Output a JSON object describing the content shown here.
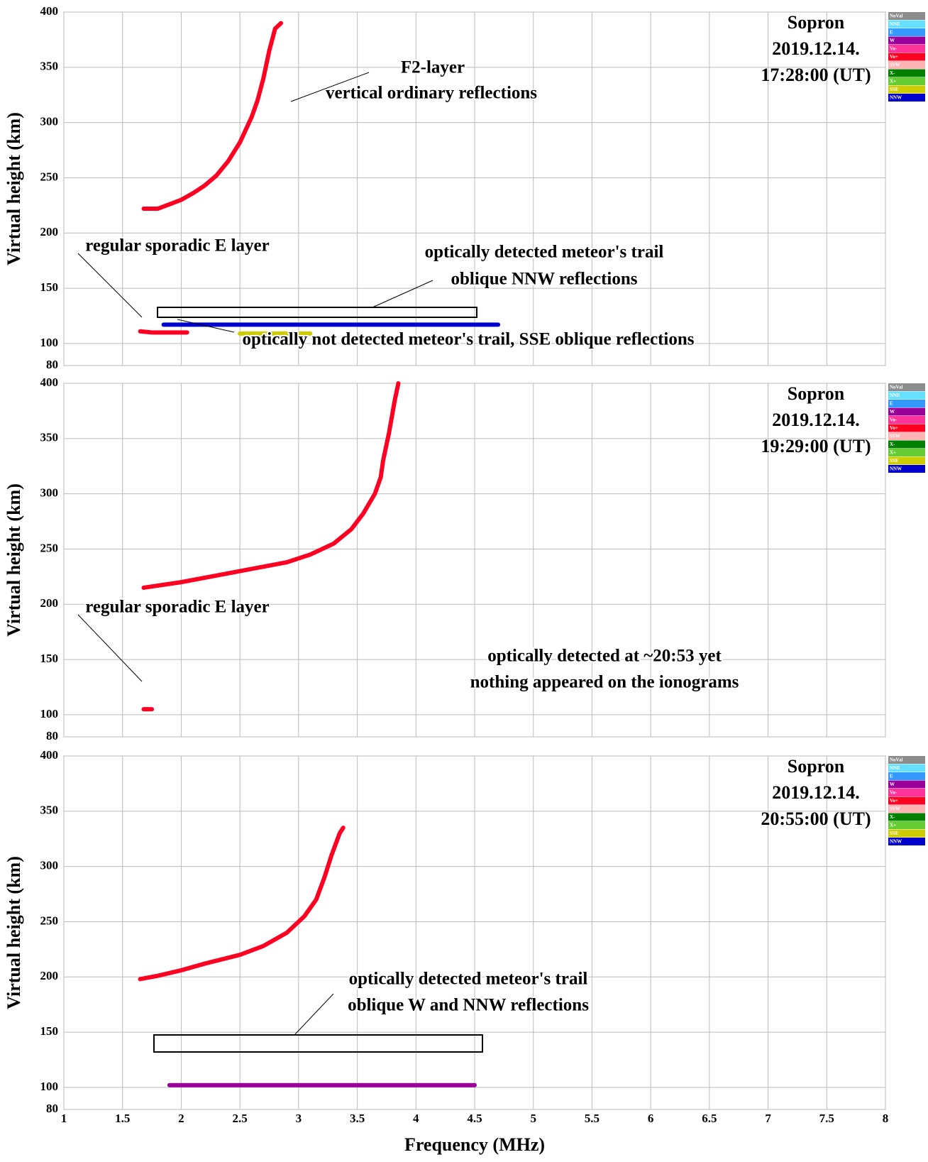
{
  "chart_data": [
    {
      "type": "ionogram",
      "title": [
        "Sopron",
        "2019.12.14.",
        "17:28:00 (UT)"
      ],
      "ylabel": "Virtual height (km)",
      "xlim": [
        1,
        8
      ],
      "ylim": [
        80,
        400
      ],
      "yticks": [
        80,
        100,
        150,
        200,
        250,
        300,
        350,
        400
      ],
      "grid": true,
      "legend": [
        {
          "label": "NoVal",
          "color": "#8c8c8c"
        },
        {
          "label": "NNE",
          "color": "#66e0ff"
        },
        {
          "label": "E",
          "color": "#3399ff"
        },
        {
          "label": "W",
          "color": "#990099"
        },
        {
          "label": "Vo-",
          "color": "#ff3399"
        },
        {
          "label": "Vo+",
          "color": "#ff0022"
        },
        {
          "label": "SSW",
          "color": "#ffb3b3"
        },
        {
          "label": "X-",
          "color": "#008000"
        },
        {
          "label": "X+",
          "color": "#66cc33"
        },
        {
          "label": "SSE",
          "color": "#cccc00"
        },
        {
          "label": "NNW",
          "color": "#0000cc"
        }
      ],
      "series": [
        {
          "color": "#ff0022",
          "x": [
            1.68,
            1.8,
            1.9,
            2.0,
            2.1,
            2.2,
            2.3,
            2.4,
            2.5,
            2.6,
            2.65,
            2.7,
            2.75,
            2.8,
            2.85
          ],
          "values": [
            222,
            222,
            226,
            230,
            236,
            243,
            252,
            265,
            282,
            305,
            320,
            340,
            365,
            385,
            390
          ]
        },
        {
          "color": "#ff0022",
          "x": [
            1.65,
            1.75,
            1.9,
            2.05
          ],
          "values": [
            111,
            110,
            110,
            110
          ]
        },
        {
          "color": "#0000cc",
          "x": [
            1.85,
            2.5,
            3.2,
            3.9,
            4.7
          ],
          "values": [
            117,
            117,
            117,
            117,
            117
          ]
        },
        {
          "color": "#cccc00",
          "x": [
            2.5,
            2.8,
            3.1
          ],
          "values": [
            109,
            109,
            109
          ]
        }
      ],
      "annotations": [
        "F2-layer",
        "vertical ordinary  reflections",
        "regular sporadic E layer",
        "optically detected meteor's trail",
        "oblique NNW reflections",
        "optically not detected meteor's trail, SSE oblique reflections"
      ]
    },
    {
      "type": "ionogram",
      "title": [
        "Sopron",
        "2019.12.14.",
        "19:29:00 (UT)"
      ],
      "ylabel": "Virtual height (km)",
      "xlim": [
        1,
        8
      ],
      "ylim": [
        80,
        400
      ],
      "yticks": [
        80,
        100,
        150,
        200,
        250,
        300,
        350,
        400
      ],
      "grid": true,
      "legend": [
        {
          "label": "NoVal",
          "color": "#8c8c8c"
        },
        {
          "label": "NNE",
          "color": "#66e0ff"
        },
        {
          "label": "E",
          "color": "#3399ff"
        },
        {
          "label": "W",
          "color": "#990099"
        },
        {
          "label": "Vo-",
          "color": "#ff3399"
        },
        {
          "label": "Vo+",
          "color": "#ff0022"
        },
        {
          "label": "SSW",
          "color": "#ffb3b3"
        },
        {
          "label": "X-",
          "color": "#008000"
        },
        {
          "label": "X+",
          "color": "#66cc33"
        },
        {
          "label": "SSE",
          "color": "#cccc00"
        },
        {
          "label": "NNW",
          "color": "#0000cc"
        }
      ],
      "series": [
        {
          "color": "#ff0022",
          "x": [
            1.68,
            2.0,
            2.3,
            2.6,
            2.9,
            3.1,
            3.3,
            3.45,
            3.55,
            3.65,
            3.7,
            3.72,
            3.77,
            3.82,
            3.85
          ],
          "values": [
            215,
            220,
            226,
            232,
            238,
            245,
            255,
            268,
            282,
            300,
            315,
            330,
            355,
            385,
            400
          ]
        },
        {
          "color": "#ff0022",
          "x": [
            1.68,
            1.75
          ],
          "values": [
            105,
            105
          ]
        }
      ],
      "annotations": [
        "regular sporadic E layer",
        "optically detected at ~20:53 yet",
        "nothing appeared on the ionograms"
      ]
    },
    {
      "type": "ionogram",
      "title": [
        "Sopron",
        "2019.12.14.",
        "20:55:00 (UT)"
      ],
      "ylabel": "Virtual height (km)",
      "xlabel": "Frequency (MHz)",
      "xlim": [
        1,
        8
      ],
      "ylim": [
        80,
        400
      ],
      "xticks": [
        1,
        1.5,
        2,
        2.5,
        3,
        3.5,
        4,
        4.5,
        5,
        5.5,
        6,
        6.5,
        7,
        7.5,
        8
      ],
      "yticks": [
        80,
        100,
        150,
        200,
        250,
        300,
        350,
        400
      ],
      "grid": true,
      "legend": [
        {
          "label": "NoVal",
          "color": "#8c8c8c"
        },
        {
          "label": "NNE",
          "color": "#66e0ff"
        },
        {
          "label": "E",
          "color": "#3399ff"
        },
        {
          "label": "W",
          "color": "#990099"
        },
        {
          "label": "Vo-",
          "color": "#ff3399"
        },
        {
          "label": "Vo+",
          "color": "#ff0022"
        },
        {
          "label": "SSW",
          "color": "#ffb3b3"
        },
        {
          "label": "X-",
          "color": "#008000"
        },
        {
          "label": "X+",
          "color": "#66cc33"
        },
        {
          "label": "SSE",
          "color": "#cccc00"
        },
        {
          "label": "NNW",
          "color": "#0000cc"
        }
      ],
      "series": [
        {
          "color": "#ff0022",
          "x": [
            1.65,
            1.8,
            2.0,
            2.2,
            2.5,
            2.7,
            2.9,
            3.05,
            3.15,
            3.22,
            3.28,
            3.35,
            3.38
          ],
          "values": [
            198,
            201,
            206,
            212,
            220,
            228,
            240,
            255,
            270,
            290,
            310,
            330,
            335
          ]
        },
        {
          "color": "#990099",
          "x": [
            1.9,
            2.6,
            3.3,
            4.0,
            4.5
          ],
          "values": [
            102,
            102,
            102,
            102,
            102
          ]
        }
      ],
      "annotations": [
        "optically detected meteor's trail",
        "oblique W and NNW reflections"
      ]
    }
  ]
}
